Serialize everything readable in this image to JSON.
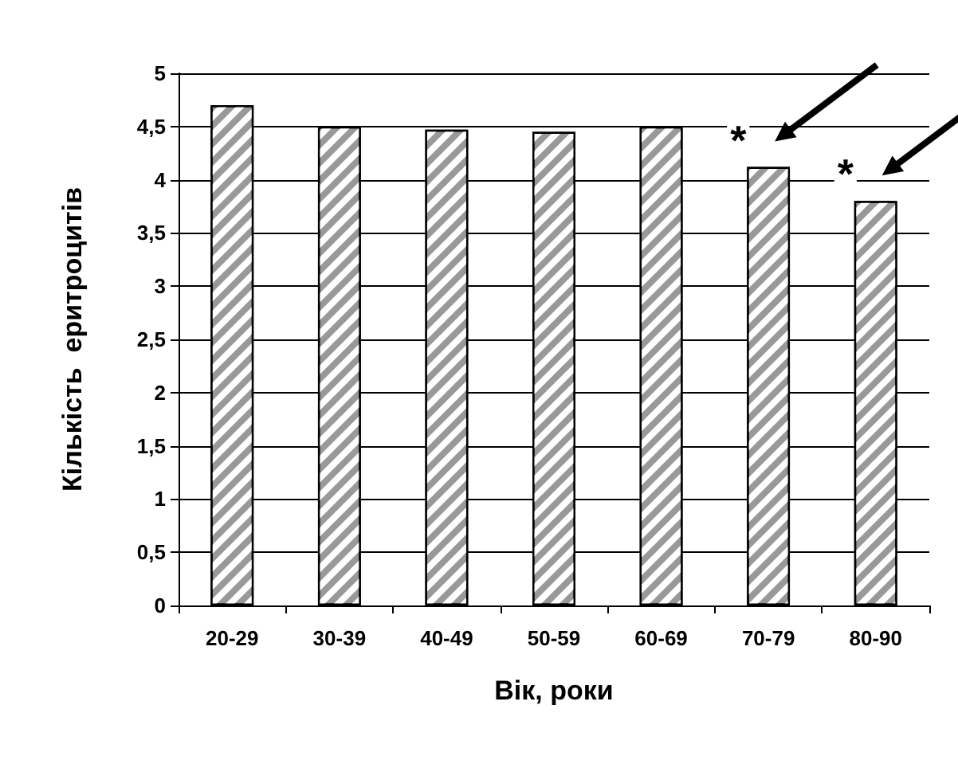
{
  "chart_data": {
    "type": "bar",
    "xlabel": "Вік, роки",
    "ylabel": "Кількість  еритроцитів",
    "categories": [
      "20-29",
      "30-39",
      "40-49",
      "50-59",
      "60-69",
      "70-79",
      "80-90"
    ],
    "values": [
      4.7,
      4.5,
      4.47,
      4.45,
      4.5,
      4.12,
      3.8
    ],
    "color": "#999999",
    "ylim": [
      0,
      5
    ],
    "yticks": [
      {
        "value": 0,
        "label": "0"
      },
      {
        "value": 0.5,
        "label": "0,5"
      },
      {
        "value": 1,
        "label": "1"
      },
      {
        "value": 1.5,
        "label": "1,5"
      },
      {
        "value": 2,
        "label": "2"
      },
      {
        "value": 2.5,
        "label": "2,5"
      },
      {
        "value": 3,
        "label": "3"
      },
      {
        "value": 3.5,
        "label": "3,5"
      },
      {
        "value": 4,
        "label": "4"
      },
      {
        "value": 4.5,
        "label": "4,5"
      },
      {
        "value": 5,
        "label": "5"
      }
    ],
    "grid": "y",
    "annotations": [
      {
        "text": "*",
        "x": "70-79",
        "y": 4.12
      },
      {
        "text": "*",
        "x": "80-90",
        "y": 3.8
      }
    ]
  }
}
